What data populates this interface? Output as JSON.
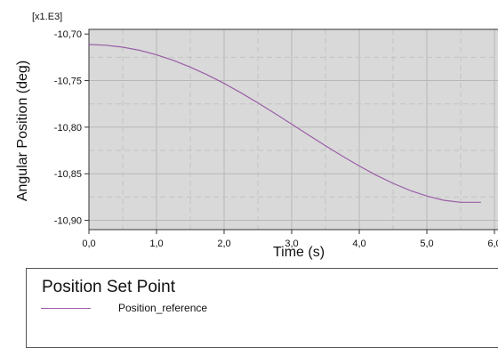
{
  "chart_data": {
    "type": "line",
    "title": "",
    "xlabel": "Time (s)",
    "ylabel": "Angular Position (deg)",
    "y_multiplier_label": "[x1.E3]",
    "xlim": [
      0,
      6
    ],
    "ylim": [
      -10.91,
      -10.695
    ],
    "x_ticks": [
      0,
      1,
      2,
      3,
      4,
      5,
      6
    ],
    "x_tick_labels": [
      "0,0",
      "1,0",
      "2,0",
      "3,0",
      "4,0",
      "5,0",
      "6,0"
    ],
    "y_ticks": [
      -10.7,
      -10.75,
      -10.8,
      -10.85,
      -10.9
    ],
    "y_tick_labels": [
      "-10,70",
      "-10,75",
      "-10,80",
      "-10,85",
      "-10,90"
    ],
    "grid": true,
    "plot_background": "#d9d9d9",
    "series": [
      {
        "name": "Position_reference",
        "color": "#9a5fa6",
        "x": [
          0,
          0.25,
          0.5,
          0.75,
          1.0,
          1.25,
          1.5,
          1.75,
          2.0,
          2.25,
          2.5,
          2.75,
          3.0,
          3.25,
          3.5,
          3.75,
          4.0,
          4.25,
          4.5,
          4.75,
          5.0,
          5.25,
          5.5,
          5.8
        ],
        "y": [
          -10.7112,
          -10.712,
          -10.7141,
          -10.7175,
          -10.7223,
          -10.7283,
          -10.7355,
          -10.7438,
          -10.753,
          -10.7631,
          -10.7739,
          -10.7852,
          -10.7968,
          -10.8085,
          -10.82,
          -10.8311,
          -10.8417,
          -10.8515,
          -10.8603,
          -10.8679,
          -10.874,
          -10.8785,
          -10.8807,
          -10.8807
        ]
      }
    ]
  },
  "legend": {
    "title": "Position Set Point",
    "entries": [
      {
        "label": "Position_reference",
        "color": "#9a5fa6"
      }
    ]
  }
}
